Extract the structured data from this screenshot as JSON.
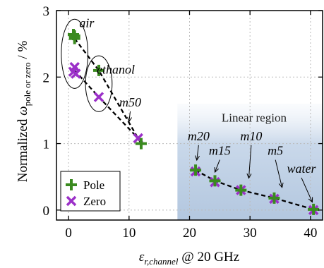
{
  "chart_data": {
    "type": "scatter",
    "xlabel_main": "ε",
    "xlabel_sub": "r,channel",
    "xlabel_tail": " @ 20 GHz",
    "ylabel_head": "Normalized ",
    "ylabel_main": "ω",
    "ylabel_sub": "pole or zero",
    "ylabel_tail": " / %",
    "xlim": [
      -2,
      42
    ],
    "ylim": [
      -0.15,
      3.0
    ],
    "xticks": [
      0,
      10,
      20,
      30,
      40
    ],
    "yticks": [
      0,
      1,
      2,
      3
    ],
    "linear_region": {
      "label": "Linear region",
      "x_start": 18
    },
    "series": [
      {
        "name": "Pole",
        "color": "#3a8a1f",
        "marker": "plus",
        "points": [
          {
            "x": 1.0,
            "y": 2.62
          },
          {
            "x": 1.0,
            "y": 2.58
          },
          {
            "x": 0.8,
            "y": 2.64
          },
          {
            "x": 5.0,
            "y": 2.1
          },
          {
            "x": 12.0,
            "y": 1.0
          },
          {
            "x": 21.0,
            "y": 0.6
          },
          {
            "x": 24.2,
            "y": 0.44
          },
          {
            "x": 28.5,
            "y": 0.3
          },
          {
            "x": 34.0,
            "y": 0.18
          },
          {
            "x": 40.5,
            "y": 0.01
          }
        ]
      },
      {
        "name": "Zero",
        "color": "#9b30c8",
        "marker": "x",
        "points": [
          {
            "x": 1.0,
            "y": 2.15
          },
          {
            "x": 0.8,
            "y": 2.08
          },
          {
            "x": 1.2,
            "y": 2.05
          },
          {
            "x": 5.0,
            "y": 1.7
          },
          {
            "x": 11.5,
            "y": 1.08
          },
          {
            "x": 21.0,
            "y": 0.58
          },
          {
            "x": 24.2,
            "y": 0.42
          },
          {
            "x": 28.5,
            "y": 0.3
          },
          {
            "x": 34.0,
            "y": 0.17
          },
          {
            "x": 40.5,
            "y": 0.0
          }
        ]
      }
    ],
    "fit_lines": [
      [
        {
          "x": 1.0,
          "y": 2.58
        },
        {
          "x": 5.0,
          "y": 2.1
        },
        {
          "x": 12.0,
          "y": 1.0
        }
      ],
      [
        {
          "x": 1.0,
          "y": 2.1
        },
        {
          "x": 5.0,
          "y": 1.7
        },
        {
          "x": 11.8,
          "y": 1.05
        }
      ],
      [
        {
          "x": 21.0,
          "y": 0.6
        },
        {
          "x": 24.2,
          "y": 0.44
        },
        {
          "x": 28.5,
          "y": 0.3
        },
        {
          "x": 34.0,
          "y": 0.18
        },
        {
          "x": 40.5,
          "y": 0.01
        }
      ]
    ],
    "ellipses": [
      {
        "cx": 1.0,
        "cy": 2.35,
        "rx": 2.2,
        "ry": 0.52
      },
      {
        "cx": 5.0,
        "cy": 1.9,
        "rx": 2.2,
        "ry": 0.42
      }
    ],
    "annotations": [
      {
        "text": "air",
        "x": 3.0,
        "y": 2.75,
        "italic": true
      },
      {
        "text": "ethanol",
        "x": 7.8,
        "y": 2.05,
        "italic": true
      },
      {
        "text": "m50",
        "x": 10.2,
        "y": 1.56,
        "italic": true,
        "arrow_to": {
          "x": 10.0,
          "y": 1.33
        }
      },
      {
        "text": "m20",
        "x": 21.5,
        "y": 1.05,
        "italic": true,
        "arrow_to": {
          "x": 21.2,
          "y": 0.75
        }
      },
      {
        "text": "m15",
        "x": 25.0,
        "y": 0.83,
        "italic": true,
        "arrow_to": {
          "x": 24.2,
          "y": 0.57
        }
      },
      {
        "text": "m10",
        "x": 30.2,
        "y": 1.05,
        "italic": true,
        "arrow_to": {
          "x": 29.8,
          "y": 0.48
        }
      },
      {
        "text": "m5",
        "x": 34.2,
        "y": 0.83,
        "italic": true,
        "arrow_to": {
          "x": 35.3,
          "y": 0.34
        }
      },
      {
        "text": "water",
        "x": 38.5,
        "y": 0.56,
        "italic": true,
        "arrow_to": {
          "x": 40.3,
          "y": 0.12
        }
      }
    ],
    "legend": {
      "placement": "bottom-left",
      "entries": [
        {
          "label": "Pole",
          "marker": "plus",
          "color": "#3a8a1f"
        },
        {
          "label": "Zero",
          "marker": "x",
          "color": "#9b30c8"
        }
      ]
    }
  }
}
